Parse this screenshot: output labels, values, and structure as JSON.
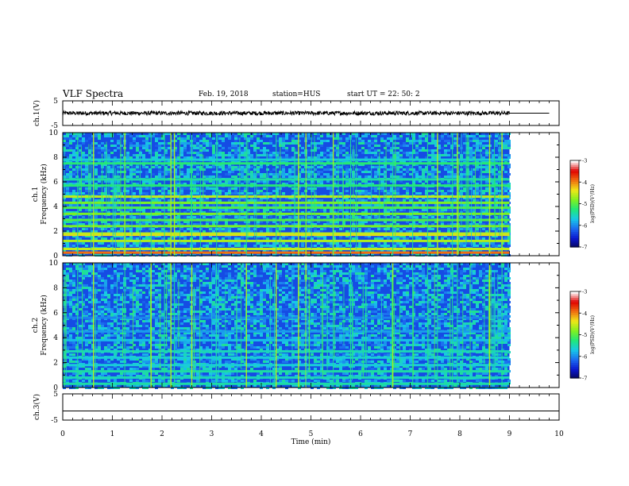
{
  "header": {
    "title": "VLF Spectra",
    "date": "Feb. 19, 2018",
    "station": "station=HUS",
    "start": "start  UT =   22: 50: 2"
  },
  "colors": {
    "background": "#000000",
    "spectrogram_ramp": [
      "#06065a",
      "#0a18d0",
      "#1c6cf0",
      "#18c8e8",
      "#20e878",
      "#80f020",
      "#f0e818",
      "#f07010",
      "#e00000",
      "#ffffff"
    ]
  },
  "chart_data": [
    {
      "type": "line",
      "name": "ch1-waveform",
      "ylabel": "ch.1(V)",
      "ylim": [
        -5,
        5
      ],
      "yticks": [
        "5",
        "-5"
      ],
      "xlim": [
        0,
        10
      ],
      "trace": {
        "level": 0,
        "amplitude": 0.8,
        "active_until_min": 9.0,
        "level_after": 0
      }
    },
    {
      "type": "heatmap",
      "name": "ch1-spectrogram",
      "ylabel": "ch.1\nFrequency (kHz)",
      "ylim": [
        0,
        10
      ],
      "yticks": [
        "0",
        "2",
        "4",
        "6",
        "8",
        "10"
      ],
      "xlim": [
        0,
        10
      ],
      "data_end_min": 9.0,
      "bands_khz": [
        {
          "f": 0.25,
          "level": 0.78
        },
        {
          "f": 0.55,
          "level": 0.62
        },
        {
          "f": 1.2,
          "level": 0.6
        },
        {
          "f": 1.7,
          "level": 0.68
        },
        {
          "f": 1.8,
          "level": 0.62
        },
        {
          "f": 2.4,
          "level": 0.55
        },
        {
          "f": 2.9,
          "level": 0.5
        },
        {
          "f": 3.4,
          "level": 0.55
        },
        {
          "f": 3.9,
          "level": 0.5
        },
        {
          "f": 4.3,
          "level": 0.55
        },
        {
          "f": 4.8,
          "level": 0.62
        },
        {
          "f": 5.7,
          "level": 0.45
        },
        {
          "f": 6.2,
          "level": 0.4
        },
        {
          "f": 7.5,
          "level": 0.45
        },
        {
          "f": 7.8,
          "level": 0.35
        }
      ],
      "sferics_min": [
        0.3,
        0.62,
        1.25,
        1.78,
        2.05,
        2.18,
        2.25,
        2.6,
        3.1,
        3.7,
        4.3,
        4.75,
        4.9,
        5.45,
        5.8,
        6.65,
        7.05,
        7.35,
        7.55,
        7.85,
        7.95,
        8.6,
        8.85
      ],
      "colorbar": {
        "label": "log(PSD)(V²/Hz)",
        "range": [
          -7,
          -3
        ],
        "ticks": [
          "-3",
          "-4",
          "-5",
          "-6",
          "-7"
        ]
      }
    },
    {
      "type": "heatmap",
      "name": "ch2-spectrogram",
      "ylabel": "ch.2\nFrequency (kHz)",
      "ylim": [
        0,
        10
      ],
      "yticks": [
        "0",
        "2",
        "4",
        "6",
        "8",
        "10"
      ],
      "xlim": [
        0,
        10
      ],
      "data_end_min": 9.0,
      "bands_khz": [
        {
          "f": 0.3,
          "level": 0.4
        },
        {
          "f": 0.8,
          "level": 0.38
        },
        {
          "f": 1.3,
          "level": 0.4
        },
        {
          "f": 1.8,
          "level": 0.35
        },
        {
          "f": 2.4,
          "level": 0.35
        },
        {
          "f": 2.9,
          "level": 0.38
        },
        {
          "f": 3.8,
          "level": 0.32
        },
        {
          "f": 4.5,
          "level": 0.28
        },
        {
          "f": 5.6,
          "level": 0.25
        }
      ],
      "sferics_min": [
        0.3,
        0.62,
        1.25,
        1.78,
        2.05,
        2.18,
        2.25,
        2.6,
        3.1,
        3.7,
        4.3,
        4.75,
        4.9,
        5.45,
        5.8,
        6.65,
        7.05,
        7.35,
        7.55,
        7.85,
        7.95,
        8.6,
        8.85
      ],
      "colorbar": {
        "label": "log(PSD)(V²/Hz)",
        "range": [
          -7,
          -3
        ],
        "ticks": [
          "-3",
          "-4",
          "-5",
          "-6",
          "-7"
        ]
      }
    },
    {
      "type": "line",
      "name": "ch3-waveform",
      "ylabel": "ch.3(V)",
      "ylim": [
        -5,
        5
      ],
      "yticks": [
        "5",
        "-5"
      ],
      "xlim": [
        0,
        10
      ],
      "trace": {
        "level": -1.5,
        "amplitude": 0,
        "active_until_min": 10,
        "level_after": -1.5
      }
    }
  ],
  "xaxis": {
    "label": "Time  (min)",
    "ticks": [
      "0",
      "1",
      "2",
      "3",
      "4",
      "5",
      "6",
      "7",
      "8",
      "9",
      "10"
    ]
  }
}
